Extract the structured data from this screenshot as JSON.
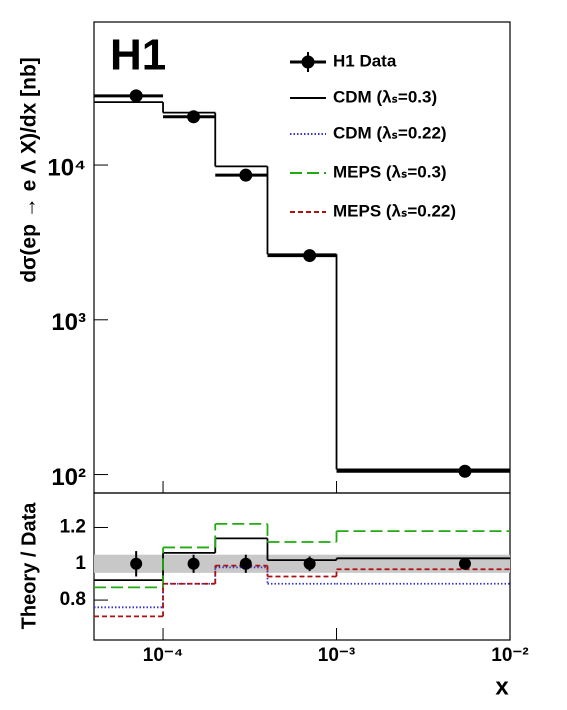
{
  "chart_data": [
    {
      "type": "step",
      "annotation": "H1",
      "ylabel": "dσ(ep → e Λ X)/dx [nb]",
      "xlog": true,
      "ylog": true,
      "xlim": [
        4e-05,
        0.01
      ],
      "ylim": [
        76,
        84000
      ],
      "yticks": [
        {
          "value": 100,
          "label": "10²"
        },
        {
          "value": 1000,
          "label": "10³"
        },
        {
          "value": 10000,
          "label": "10⁴"
        }
      ],
      "bins": [
        4e-05,
        0.0001,
        0.0002,
        0.0004,
        0.001,
        0.01
      ],
      "x": [
        7e-05,
        0.00015,
        0.0003,
        0.0007,
        0.0055
      ],
      "series": [
        {
          "name": "H1 Data",
          "color": "#000000",
          "style": "points",
          "values": [
            28000,
            20500,
            8600,
            2600,
            105
          ]
        },
        {
          "name": "CDM (λₛ=0.3)",
          "color": "#000000",
          "style": "solid",
          "values": [
            25500,
            21800,
            9800,
            2650,
            108
          ]
        }
      ]
    },
    {
      "type": "step",
      "ylabel": "Theory / Data",
      "xlabel": "x",
      "xlog": true,
      "xlim": [
        4e-05,
        0.01
      ],
      "ylim": [
        0.58,
        1.39
      ],
      "xticks": [
        {
          "value": 0.0001,
          "label": "10⁻⁴"
        },
        {
          "value": 0.001,
          "label": "10⁻³"
        },
        {
          "value": 0.01,
          "label": "10⁻²"
        }
      ],
      "yticks": [
        0.8,
        1,
        1.2
      ],
      "bins": [
        4e-05,
        0.0001,
        0.0002,
        0.0004,
        0.001,
        0.01
      ],
      "x": [
        7e-05,
        0.00015,
        0.0003,
        0.0007,
        0.0055
      ],
      "band": {
        "value": 1,
        "error": 0.05,
        "color": "#c8c8c8"
      },
      "data": {
        "values": [
          1,
          1,
          1,
          1,
          1
        ],
        "errors": [
          0.07,
          0.05,
          0.05,
          0.04,
          0.03
        ],
        "color": "#000000"
      },
      "series": [
        {
          "color": "#000000",
          "style": "solid",
          "values": [
            0.91,
            1.06,
            1.14,
            1.02,
            1.03
          ]
        },
        {
          "name": "CDM (λₛ=0.22)",
          "color": "#3333cc",
          "style": "dotted",
          "values": [
            0.76,
            0.89,
            0.98,
            0.89,
            0.89
          ]
        },
        {
          "name": "MEPS (λₛ=0.3)",
          "color": "#22aa11",
          "style": "dashed",
          "values": [
            0.87,
            1.09,
            1.22,
            1.12,
            1.18
          ]
        },
        {
          "name": "MEPS (λₛ=0.22)",
          "color": "#aa1111",
          "style": "shortdash",
          "values": [
            0.71,
            0.89,
            0.99,
            0.93,
            0.97
          ]
        }
      ]
    }
  ]
}
